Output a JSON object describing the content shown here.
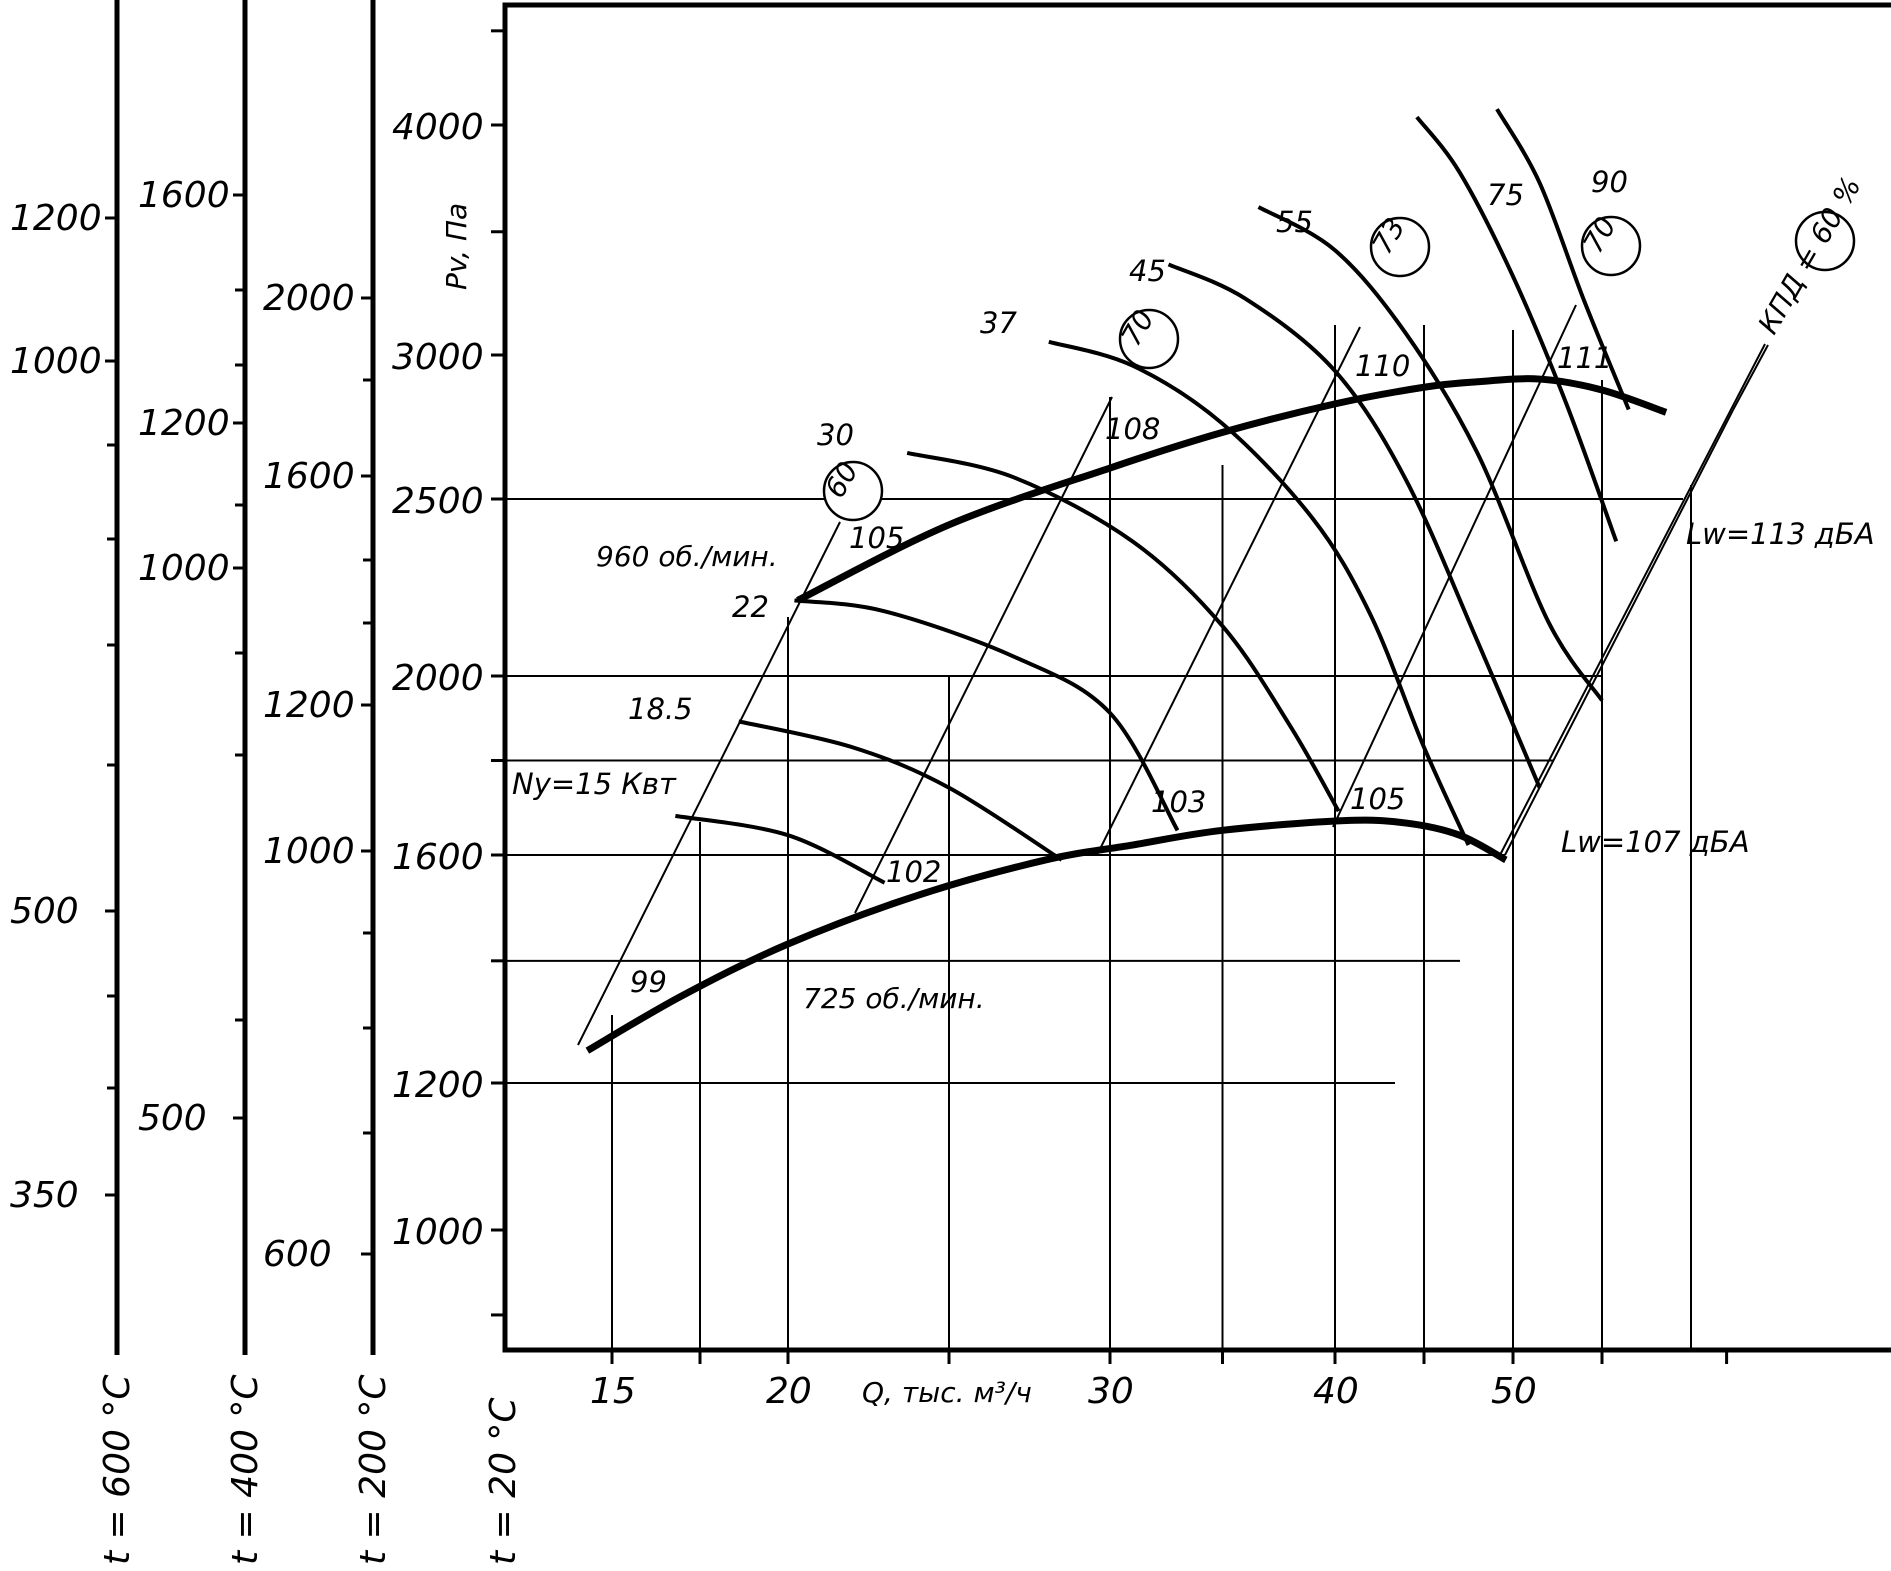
{
  "chart_data": {
    "type": "line",
    "xlabel": "Q, тыс. м³/ч",
    "ylabel": "Pv, Па",
    "x_ticks": [
      "15",
      "20",
      "30",
      "40",
      "50"
    ],
    "y_ticks": [
      "1000",
      "1200",
      "1600",
      "2000",
      "2500",
      "3000",
      "4000"
    ],
    "y_scale": "log",
    "xlim": [
      12,
      62
    ],
    "ylim": [
      900,
      5000
    ],
    "grid": "partial",
    "temperature_scales": [
      {
        "label": "t = 600 °C",
        "ticks": [
          {
            "value": 350,
            "text": "350"
          },
          {
            "value": 500,
            "text": "500"
          },
          {
            "value": 1000,
            "text": "1000"
          },
          {
            "value": 1200,
            "text": "1200"
          }
        ]
      },
      {
        "label": "t = 400 °C",
        "ticks": [
          {
            "value": 500,
            "text": "500"
          },
          {
            "value": 1000,
            "text": "1000"
          },
          {
            "value": 1200,
            "text": "1200"
          },
          {
            "value": 1600,
            "text": "1600"
          }
        ]
      },
      {
        "label": "t = 200 °C",
        "ticks": [
          {
            "value": 600,
            "text": "600"
          },
          {
            "value": 1000,
            "text": "1000"
          },
          {
            "value": 1200,
            "text": "1200"
          },
          {
            "value": 1600,
            "text": "1600"
          },
          {
            "value": 2000,
            "text": "2000"
          }
        ]
      },
      {
        "label": "t = 20 °C",
        "ticks": []
      }
    ],
    "speed_curves": [
      {
        "label": "960 об./мин.",
        "points": [
          [
            20.3,
            2200
          ],
          [
            25,
            2420
          ],
          [
            30,
            2600
          ],
          [
            35,
            2720
          ],
          [
            40,
            2820
          ],
          [
            45,
            2880
          ],
          [
            48,
            2900
          ],
          [
            51.5,
            2910
          ],
          [
            55,
            2870
          ],
          [
            58.6,
            2790
          ]
        ]
      },
      {
        "label": "725 об./мин.",
        "points": [
          [
            14.3,
            1250
          ],
          [
            17,
            1340
          ],
          [
            20,
            1430
          ],
          [
            24,
            1520
          ],
          [
            28,
            1590
          ],
          [
            31,
            1620
          ],
          [
            35,
            1650
          ],
          [
            40.5,
            1670
          ],
          [
            44,
            1665
          ],
          [
            47,
            1640
          ],
          [
            49.6,
            1590
          ]
        ]
      }
    ],
    "power_curves": [
      {
        "label": "Ny=15 Квт",
        "points": [
          [
            16.8,
            1680
          ],
          [
            20,
            1640
          ],
          [
            23,
            1545
          ]
        ]
      },
      {
        "label": "18.5",
        "points": [
          [
            18.6,
            1890
          ],
          [
            22,
            1830
          ],
          [
            25,
            1740
          ],
          [
            28.5,
            1590
          ]
        ]
      },
      {
        "label": "22",
        "points": [
          [
            20.2,
            2200
          ],
          [
            23,
            2170
          ],
          [
            27,
            2050
          ],
          [
            30,
            1910
          ],
          [
            33,
            1650
          ]
        ]
      },
      {
        "label": "30",
        "points": [
          [
            23.7,
            2650
          ],
          [
            27,
            2570
          ],
          [
            31,
            2370
          ],
          [
            35,
            2130
          ],
          [
            38,
            1880
          ],
          [
            40.2,
            1690
          ]
        ]
      },
      {
        "label": "37",
        "points": [
          [
            28.1,
            3050
          ],
          [
            31,
            2960
          ],
          [
            35,
            2750
          ],
          [
            39,
            2440
          ],
          [
            42,
            2160
          ],
          [
            45,
            1830
          ],
          [
            47.5,
            1620
          ]
        ]
      },
      {
        "label": "45",
        "points": [
          [
            32.6,
            3360
          ],
          [
            36,
            3220
          ],
          [
            40,
            2940
          ],
          [
            44,
            2560
          ],
          [
            48,
            2090
          ],
          [
            51.5,
            1740
          ]
        ]
      },
      {
        "label": "55",
        "points": [
          [
            36.6,
            3610
          ],
          [
            40,
            3420
          ],
          [
            44,
            3080
          ],
          [
            48,
            2650
          ],
          [
            52,
            2140
          ],
          [
            55,
            1940
          ]
        ]
      },
      {
        "label": "75",
        "points": [
          [
            44.6,
            4040
          ],
          [
            47,
            3770
          ],
          [
            50,
            3310
          ],
          [
            53,
            2820
          ],
          [
            55.8,
            2370
          ]
        ]
      },
      {
        "label": "90",
        "points": [
          [
            49.1,
            4080
          ],
          [
            51.5,
            3720
          ],
          [
            54,
            3210
          ],
          [
            56.5,
            2800
          ]
        ]
      }
    ],
    "efficiency_curves": [
      {
        "label": "60",
        "points": [
          [
            14.3,
            1250
          ],
          [
            58.6,
            2790
          ]
        ]
      },
      {
        "label": "70",
        "points": [
          [
            49.6,
            1590
          ],
          [
            58.6,
            2790
          ]
        ]
      }
    ],
    "efficiency_markers": [
      "60",
      "70",
      "73",
      "70",
      "КПД = 60 %"
    ],
    "noise_labels": [
      {
        "text": "Lw=113 дБА"
      },
      {
        "text": "Lw=107 дБА"
      },
      {
        "text": "99"
      },
      {
        "text": "102"
      },
      {
        "text": "103"
      },
      {
        "text": "105"
      },
      {
        "text": "105"
      },
      {
        "text": "108"
      },
      {
        "text": "110"
      },
      {
        "text": "111"
      }
    ]
  }
}
